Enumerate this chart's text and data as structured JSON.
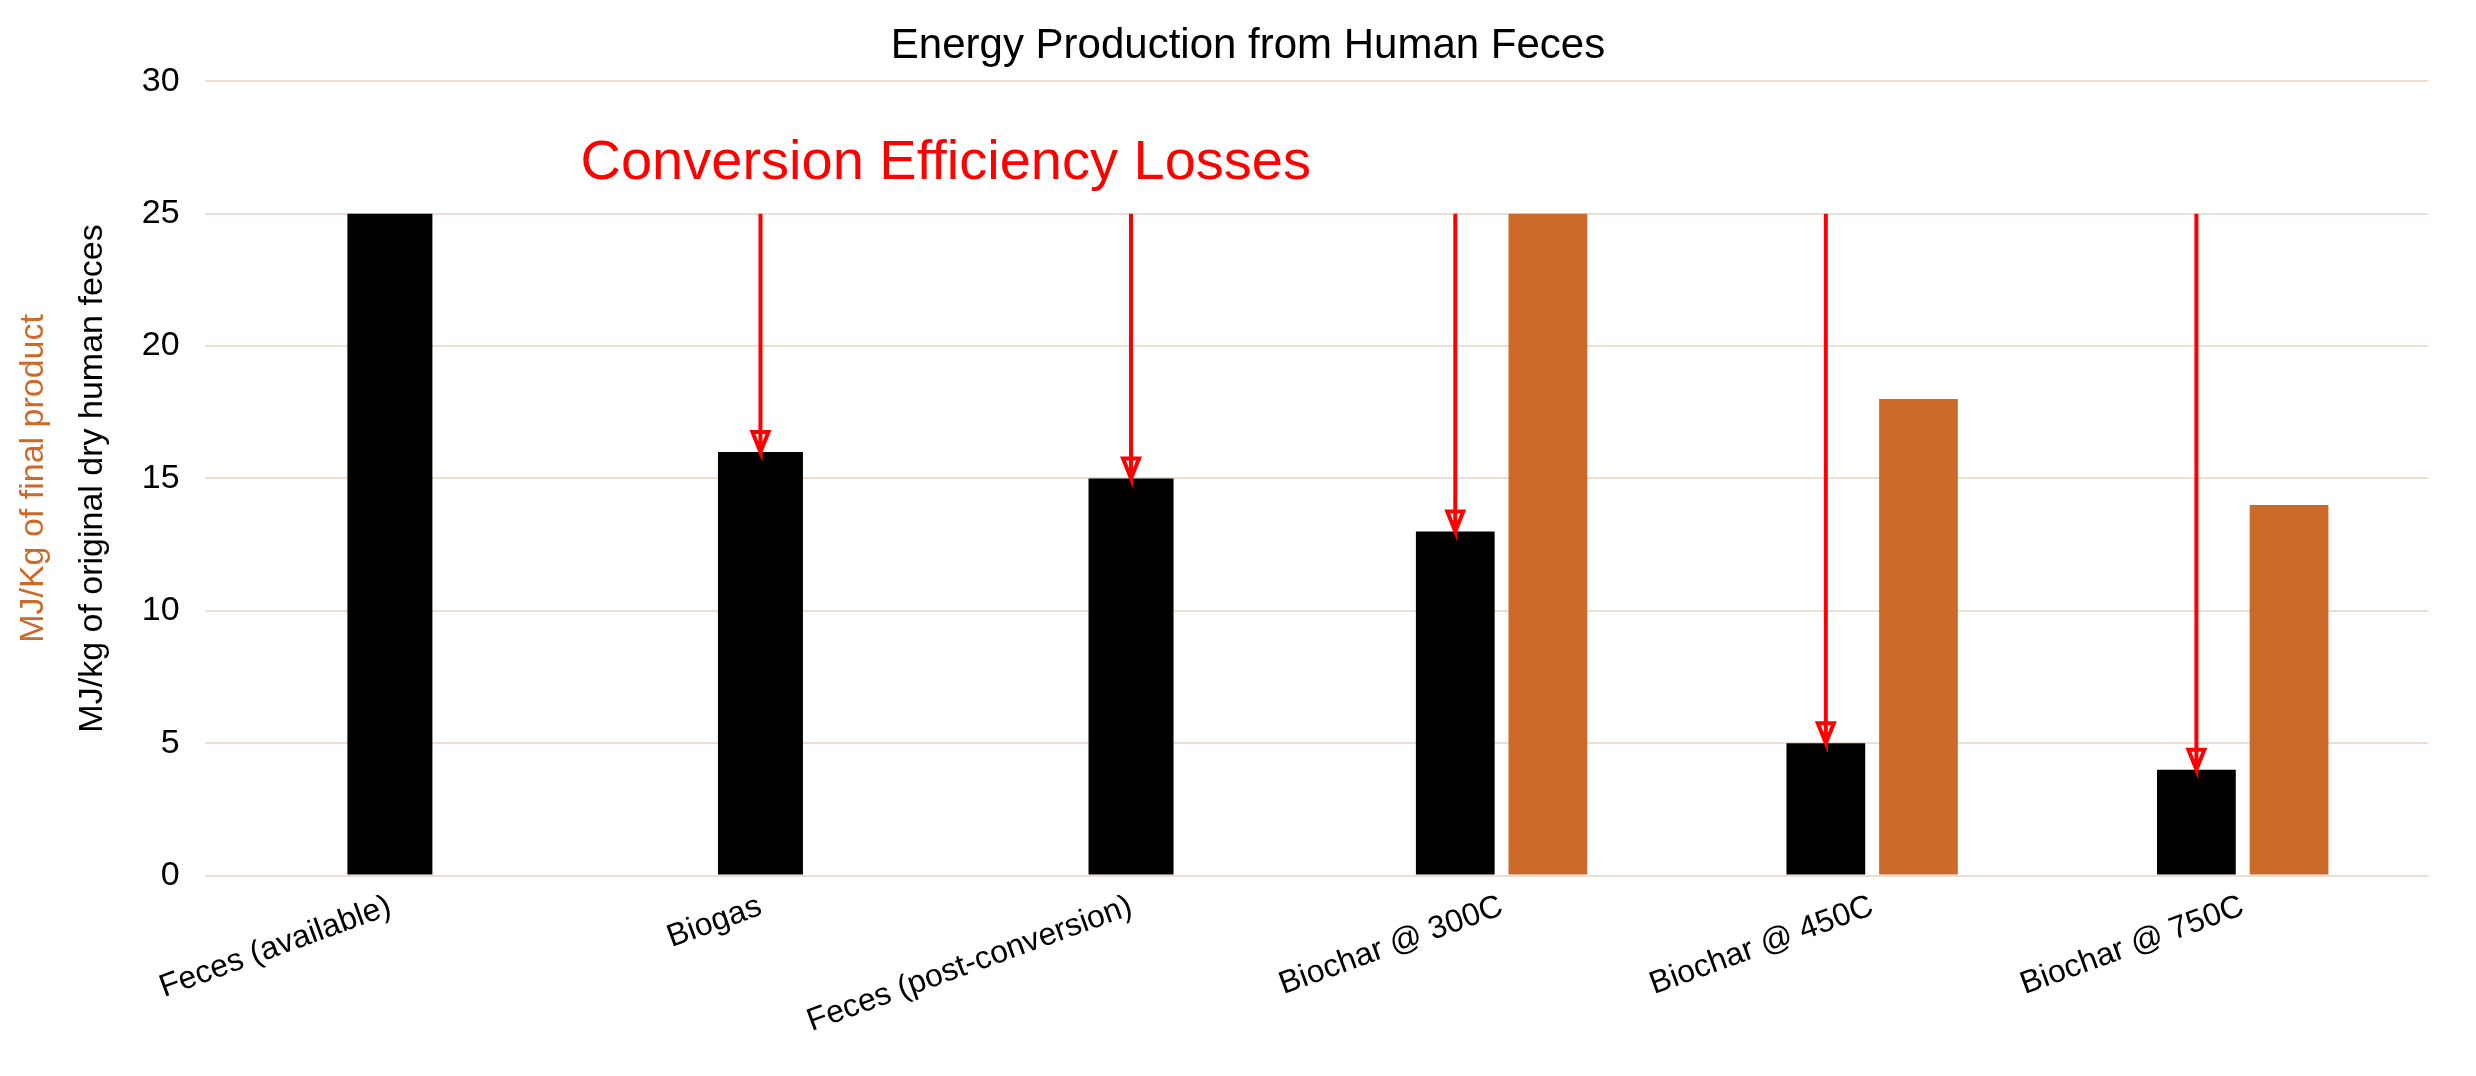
{
  "chart_data": {
    "type": "bar",
    "title": "Energy Production from Human Feces",
    "ylabel": "MJ/kg of original dry human feces",
    "y2label": "MJ/Kg of final product",
    "annotations": [
      "Conversion Efficiency Losses"
    ],
    "categories": [
      "Feces (available)",
      "Biogas",
      "Feces (post-conversion)",
      "Biochar @ 300C",
      "Biochar @ 450C",
      "Biochar @ 750C"
    ],
    "series": [
      {
        "color": "#000000",
        "values": [
          25,
          16,
          15,
          13,
          5,
          4
        ],
        "errors": [
          null,
          [
            16,
            25
          ],
          [
            15,
            25
          ],
          [
            13,
            25
          ],
          [
            5,
            25
          ],
          [
            4,
            25
          ]
        ]
      },
      {
        "color": "#cc6a2a",
        "values": [
          null,
          null,
          null,
          25,
          18,
          14
        ]
      }
    ],
    "ylim": [
      0,
      30
    ],
    "yticks": [
      0,
      5,
      10,
      15,
      20,
      25,
      30
    ],
    "grid": "y"
  }
}
